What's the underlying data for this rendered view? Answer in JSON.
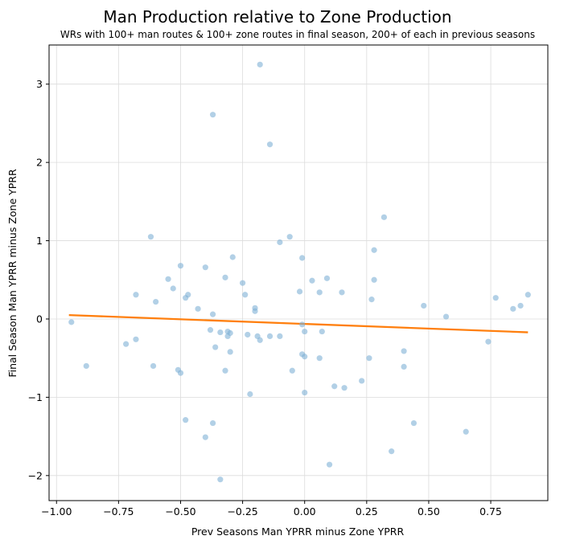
{
  "chart_data": {
    "type": "scatter",
    "title": "Man Production relative to Zone Production",
    "subtitle": "WRs with 100+ man routes & 100+ zone routes in final season, 200+ of each in previous seasons",
    "xlabel": "Prev Seasons Man YPRR minus Zone YPRR",
    "ylabel": "Final Season Man YPRR minus Zone YPRR",
    "xlim": [
      -1.03,
      0.98
    ],
    "ylim": [
      -2.32,
      3.5
    ],
    "grid": true,
    "x_ticks": [
      -1.0,
      -0.75,
      -0.5,
      -0.25,
      0.0,
      0.25,
      0.5,
      0.75
    ],
    "x_tick_labels": [
      "−1.00",
      "−0.75",
      "−0.50",
      "−0.25",
      "0.00",
      "0.25",
      "0.50",
      "0.75"
    ],
    "y_ticks": [
      -2,
      -1,
      0,
      1,
      2,
      3
    ],
    "y_tick_labels": [
      "−2",
      "−1",
      "0",
      "1",
      "2",
      "3"
    ],
    "point_color": "#7fb0d5",
    "trend_color": "#ff7f0e",
    "trend_line": {
      "x": [
        -0.95,
        0.9
      ],
      "y": [
        0.05,
        -0.17
      ]
    },
    "points": [
      {
        "x": -0.18,
        "y": 3.25
      },
      {
        "x": -0.37,
        "y": 2.61
      },
      {
        "x": -0.14,
        "y": 2.23
      },
      {
        "x": -0.62,
        "y": 1.05
      },
      {
        "x": -0.06,
        "y": 1.05
      },
      {
        "x": -0.1,
        "y": 0.98
      },
      {
        "x": 0.32,
        "y": 1.3
      },
      {
        "x": 0.28,
        "y": 0.88
      },
      {
        "x": -0.29,
        "y": 0.79
      },
      {
        "x": -0.01,
        "y": 0.78
      },
      {
        "x": -0.5,
        "y": 0.68
      },
      {
        "x": -0.4,
        "y": 0.66
      },
      {
        "x": -0.32,
        "y": 0.53
      },
      {
        "x": -0.55,
        "y": 0.51
      },
      {
        "x": 0.09,
        "y": 0.52
      },
      {
        "x": 0.03,
        "y": 0.49
      },
      {
        "x": 0.28,
        "y": 0.5
      },
      {
        "x": -0.25,
        "y": 0.46
      },
      {
        "x": -0.53,
        "y": 0.39
      },
      {
        "x": -0.02,
        "y": 0.35
      },
      {
        "x": 0.06,
        "y": 0.34
      },
      {
        "x": 0.15,
        "y": 0.34
      },
      {
        "x": -0.47,
        "y": 0.31
      },
      {
        "x": -0.68,
        "y": 0.31
      },
      {
        "x": -0.24,
        "y": 0.31
      },
      {
        "x": -0.48,
        "y": 0.27
      },
      {
        "x": 0.27,
        "y": 0.25
      },
      {
        "x": -0.6,
        "y": 0.22
      },
      {
        "x": 0.48,
        "y": 0.17
      },
      {
        "x": -0.2,
        "y": 0.14
      },
      {
        "x": -0.43,
        "y": 0.13
      },
      {
        "x": -0.2,
        "y": 0.1
      },
      {
        "x": -0.37,
        "y": 0.06
      },
      {
        "x": 0.57,
        "y": 0.03
      },
      {
        "x": 0.77,
        "y": 0.27
      },
      {
        "x": 0.84,
        "y": 0.13
      },
      {
        "x": 0.87,
        "y": 0.17
      },
      {
        "x": 0.9,
        "y": 0.31
      },
      {
        "x": -0.94,
        "y": -0.04
      },
      {
        "x": -0.01,
        "y": -0.07
      },
      {
        "x": -0.38,
        "y": -0.14
      },
      {
        "x": -0.31,
        "y": -0.16
      },
      {
        "x": -0.34,
        "y": -0.17
      },
      {
        "x": -0.3,
        "y": -0.18
      },
      {
        "x": -0.23,
        "y": -0.2
      },
      {
        "x": 0.0,
        "y": -0.16
      },
      {
        "x": 0.07,
        "y": -0.16
      },
      {
        "x": -0.31,
        "y": -0.22
      },
      {
        "x": -0.19,
        "y": -0.22
      },
      {
        "x": -0.14,
        "y": -0.22
      },
      {
        "x": -0.1,
        "y": -0.22
      },
      {
        "x": -0.18,
        "y": -0.27
      },
      {
        "x": -0.68,
        "y": -0.26
      },
      {
        "x": -0.72,
        "y": -0.32
      },
      {
        "x": 0.74,
        "y": -0.29
      },
      {
        "x": -0.36,
        "y": -0.36
      },
      {
        "x": -0.3,
        "y": -0.42
      },
      {
        "x": 0.4,
        "y": -0.41
      },
      {
        "x": -0.01,
        "y": -0.45
      },
      {
        "x": 0.0,
        "y": -0.48
      },
      {
        "x": 0.06,
        "y": -0.5
      },
      {
        "x": 0.26,
        "y": -0.5
      },
      {
        "x": -0.88,
        "y": -0.6
      },
      {
        "x": -0.61,
        "y": -0.6
      },
      {
        "x": 0.4,
        "y": -0.61
      },
      {
        "x": -0.51,
        "y": -0.65
      },
      {
        "x": -0.32,
        "y": -0.66
      },
      {
        "x": -0.05,
        "y": -0.66
      },
      {
        "x": -0.5,
        "y": -0.69
      },
      {
        "x": 0.23,
        "y": -0.79
      },
      {
        "x": 0.12,
        "y": -0.86
      },
      {
        "x": 0.16,
        "y": -0.88
      },
      {
        "x": 0.0,
        "y": -0.94
      },
      {
        "x": -0.22,
        "y": -0.96
      },
      {
        "x": -0.48,
        "y": -1.29
      },
      {
        "x": -0.37,
        "y": -1.33
      },
      {
        "x": 0.44,
        "y": -1.33
      },
      {
        "x": 0.65,
        "y": -1.44
      },
      {
        "x": -0.4,
        "y": -1.51
      },
      {
        "x": 0.35,
        "y": -1.69
      },
      {
        "x": 0.1,
        "y": -1.86
      },
      {
        "x": -0.34,
        "y": -2.05
      }
    ]
  }
}
